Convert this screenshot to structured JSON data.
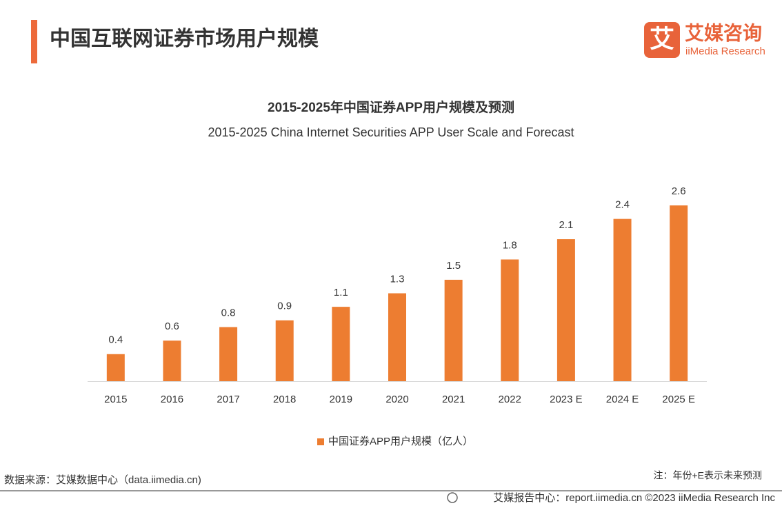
{
  "header": {
    "title": "中国互联网证券市场用户规模"
  },
  "logo": {
    "icon": "艾",
    "name": "艾媒咨询",
    "name_en": "iiMedia Research"
  },
  "chart_data": {
    "type": "bar",
    "title": "2015-2025年中国证券APP用户规模及预测",
    "subtitle": "2015-2025 China Internet Securities APP User Scale and Forecast",
    "categories": [
      "2015",
      "2016",
      "2017",
      "2018",
      "2019",
      "2020",
      "2021",
      "2022",
      "2023 E",
      "2024 E",
      "2025 E"
    ],
    "series": [
      {
        "name": "中国证券APP用户规模（亿人）",
        "color": "#ED7D31",
        "values": [
          0.4,
          0.6,
          0.8,
          0.9,
          1.1,
          1.3,
          1.5,
          1.8,
          2.1,
          2.4,
          2.6
        ]
      }
    ],
    "ylim": [
      0,
      2.6
    ],
    "grid": false,
    "legend": "bottom"
  },
  "footer": {
    "source": "数据来源：艾媒数据中心（data.iimedia.cn)",
    "note": "注：年份+E表示未来预测",
    "copyright": "艾媒报告中心：report.iimedia.cn  ©2023  iiMedia Research  Inc"
  }
}
